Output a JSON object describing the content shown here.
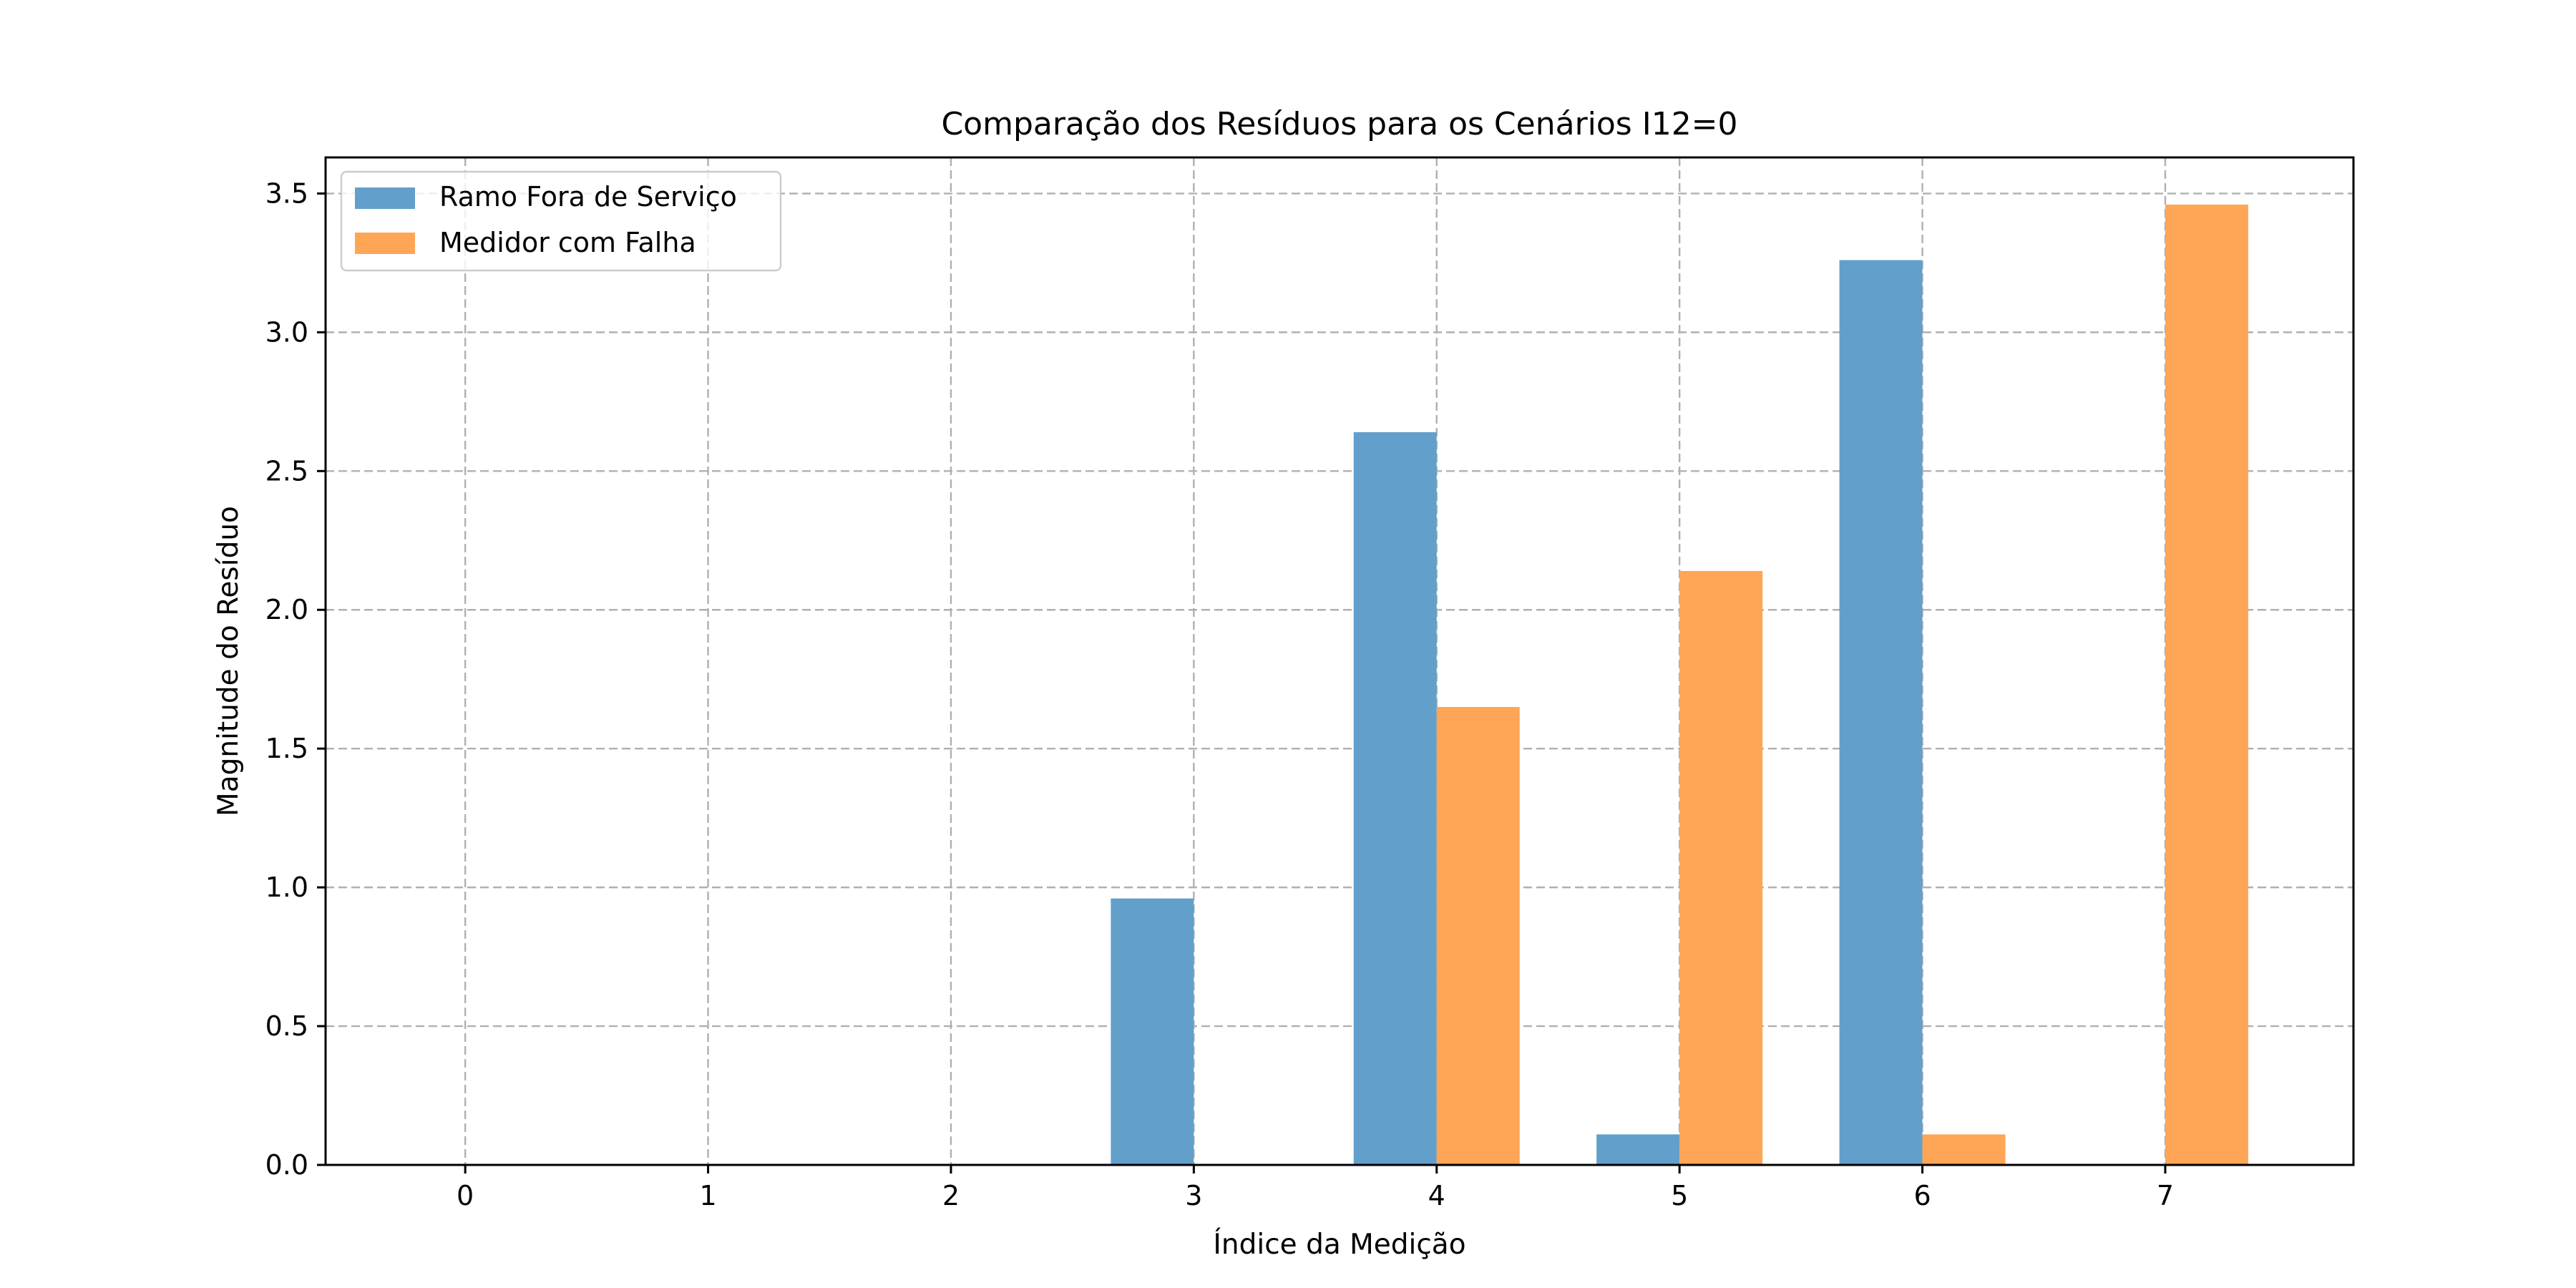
{
  "chart_data": {
    "type": "bar",
    "title": "Comparação dos Resíduos para os Cenários I12=0",
    "xlabel": "Índice da Medição",
    "ylabel": "Magnitude do Resíduo",
    "categories": [
      "0",
      "1",
      "2",
      "3",
      "4",
      "5",
      "6",
      "7"
    ],
    "xlim": [
      -0.575,
      7.775
    ],
    "ylim": [
      0,
      3.63
    ],
    "yticks": [
      "0.0",
      "0.5",
      "1.0",
      "1.5",
      "2.0",
      "2.5",
      "3.0",
      "3.5"
    ],
    "grid": true,
    "legend_position": "upper-left",
    "series": [
      {
        "name": "Ramo Fora de Serviço",
        "color": "#62a0cb",
        "values": [
          0,
          0,
          0,
          0.96,
          2.64,
          0.11,
          3.26,
          0
        ]
      },
      {
        "name": "Medidor com Falha",
        "color": "#ffa556",
        "values": [
          0,
          0,
          0,
          0,
          1.65,
          2.14,
          0.11,
          3.46
        ]
      }
    ]
  }
}
